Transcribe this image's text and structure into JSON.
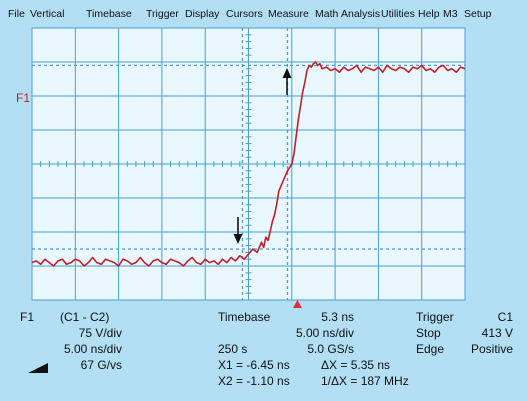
{
  "menu": [
    "File",
    "Vertical",
    "Timebase",
    "Trigger",
    "Display",
    "Cursors",
    "Measure",
    "Math",
    "Analysis",
    "Utilities",
    "Help",
    "M3",
    "Setup"
  ],
  "trace_label": "F1",
  "colors": {
    "background": "#b3dff4",
    "screen": "#e9f7fe",
    "grid": "#4b9fcf",
    "trace": "#c0202a",
    "trigger_marker": "#e0303a"
  },
  "waveform": {
    "type": "line",
    "series": [
      {
        "x_div": [
          0,
          0.1,
          0.2,
          0.3,
          0.4,
          0.5,
          0.6,
          0.7,
          0.8,
          0.9,
          1.0,
          1.1,
          1.2,
          1.3,
          1.4,
          1.5,
          1.6,
          1.7,
          1.8,
          1.9,
          2.0,
          2.1,
          2.2,
          2.3,
          2.4,
          2.5,
          2.6,
          2.7,
          2.8,
          2.9,
          3.0,
          3.1,
          3.2,
          3.3,
          3.4,
          3.5,
          3.6,
          3.7,
          3.8,
          3.9,
          4.0,
          4.1,
          4.2,
          4.3,
          4.4,
          4.5,
          4.6,
          4.7,
          4.8,
          4.9,
          5.0,
          5.1,
          5.2,
          5.3,
          5.35,
          5.4,
          5.45,
          5.5,
          5.55,
          5.6,
          5.65,
          5.7,
          5.8,
          5.9,
          6.0,
          6.05,
          6.1,
          6.15,
          6.2,
          6.25,
          6.3,
          6.35,
          6.4,
          6.45,
          6.5,
          6.55,
          6.6,
          6.65,
          6.7,
          6.8,
          6.9,
          7.0,
          7.1,
          7.2,
          7.3,
          7.4,
          7.5,
          7.6,
          7.7,
          7.8,
          7.9,
          8.0,
          8.1,
          8.2,
          8.3,
          8.4,
          8.5,
          8.6,
          8.7,
          8.8,
          8.9,
          9.0,
          9.1,
          9.2,
          9.3,
          9.4,
          9.5,
          9.6,
          9.7,
          9.8,
          9.9,
          10.0
        ],
        "y_div": [
          1.1,
          1.15,
          1.05,
          1.2,
          1.1,
          1.0,
          1.15,
          1.2,
          1.05,
          1.1,
          1.2,
          1.15,
          1.0,
          1.1,
          1.25,
          1.1,
          1.05,
          1.2,
          1.15,
          1.1,
          1.0,
          1.2,
          1.15,
          1.05,
          1.1,
          1.25,
          1.1,
          1.0,
          1.15,
          1.2,
          1.1,
          1.05,
          1.2,
          1.15,
          1.1,
          1.0,
          1.15,
          1.25,
          1.1,
          1.05,
          1.2,
          1.1,
          1.15,
          1.05,
          1.2,
          1.1,
          1.25,
          1.15,
          1.3,
          1.2,
          1.35,
          1.5,
          1.4,
          1.7,
          1.55,
          1.85,
          1.75,
          2.0,
          2.3,
          2.5,
          2.8,
          3.2,
          3.5,
          3.8,
          4.0,
          4.3,
          4.8,
          5.3,
          5.7,
          6.1,
          6.4,
          6.75,
          6.9,
          6.85,
          6.95,
          7.0,
          6.9,
          6.95,
          6.8,
          6.85,
          6.75,
          6.8,
          6.7,
          6.85,
          6.75,
          6.8,
          6.9,
          6.7,
          6.85,
          6.8,
          6.75,
          6.85,
          6.7,
          6.9,
          6.8,
          6.75,
          6.85,
          6.8,
          6.7,
          6.85,
          6.8,
          6.9,
          6.75,
          6.8,
          6.7,
          6.85,
          6.9,
          6.75,
          6.8,
          6.7,
          6.85,
          6.8
        ]
      }
    ]
  },
  "info": {
    "trace": "F1",
    "source": "(C1 - C2)",
    "vdiv": "75 V/div",
    "hdiv": "5.00 ns/div",
    "rate": "67 G/vs",
    "timebase_label": "Timebase",
    "timebase_value": "5.3 ns",
    "timebase_div": "5.00 ns/div",
    "acq_points": "250 s",
    "acq_rate": "5.0 GS/s",
    "x1": "X1 = -6.45 ns",
    "dx": "ΔX = 5.35 ns",
    "x2": "X2 = -1.10 ns",
    "inv_dx": "1/ΔX = 187 MHz",
    "trigger_label": "Trigger",
    "trigger_channel": "C1",
    "trigger_mode": "Stop",
    "trigger_level": "413 V",
    "trigger_type": "Edge",
    "trigger_slope": "Positive"
  }
}
